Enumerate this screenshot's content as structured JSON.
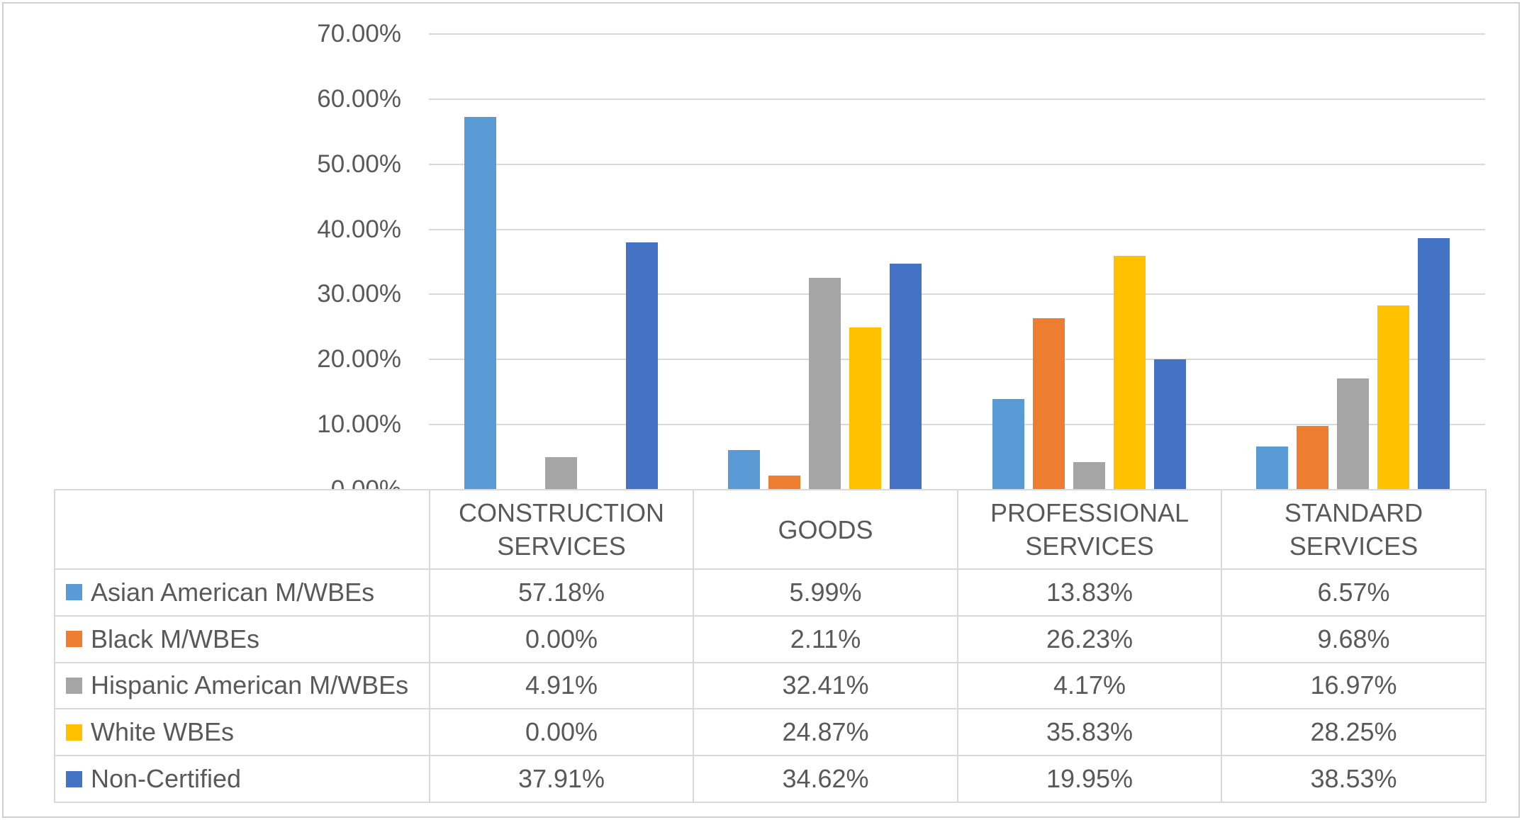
{
  "chart_data": {
    "type": "bar",
    "title": "",
    "xlabel": "",
    "ylabel": "",
    "categories": [
      "CONSTRUCTION SERVICES",
      "GOODS",
      "PROFESSIONAL SERVICES",
      "STANDARD SERVICES"
    ],
    "series": [
      {
        "name": "Asian American M/WBEs",
        "color": "#5B9BD5",
        "values": [
          57.18,
          5.99,
          13.83,
          6.57
        ]
      },
      {
        "name": "Black M/WBEs",
        "color": "#ED7D31",
        "values": [
          0.0,
          2.11,
          26.23,
          9.68
        ]
      },
      {
        "name": "Hispanic American M/WBEs",
        "color": "#A5A5A5",
        "values": [
          4.91,
          32.41,
          4.17,
          16.97
        ]
      },
      {
        "name": "White WBEs",
        "color": "#FFC000",
        "values": [
          0.0,
          24.87,
          35.83,
          28.25
        ]
      },
      {
        "name": "Non-Certified",
        "color": "#4472C4",
        "values": [
          37.91,
          34.62,
          19.95,
          38.53
        ]
      }
    ],
    "value_labels": [
      [
        "57.18%",
        "5.99%",
        "13.83%",
        "6.57%"
      ],
      [
        "0.00%",
        "2.11%",
        "26.23%",
        "9.68%"
      ],
      [
        "4.91%",
        "32.41%",
        "4.17%",
        "16.97%"
      ],
      [
        "0.00%",
        "24.87%",
        "35.83%",
        "28.25%"
      ],
      [
        "37.91%",
        "34.62%",
        "19.95%",
        "38.53%"
      ]
    ],
    "y_ticks": [
      "70.00%",
      "60.00%",
      "50.00%",
      "40.00%",
      "30.00%",
      "20.00%",
      "10.00%",
      "0.00%"
    ],
    "ylim": [
      0,
      70
    ],
    "grid": true,
    "legend_position": "data-table-left-column"
  },
  "colors": {
    "gridline": "#D9D9D9",
    "table_border": "#D9D9D9",
    "frame_border": "#D0CECE",
    "text": "#595959",
    "background": "#FFFFFF"
  }
}
